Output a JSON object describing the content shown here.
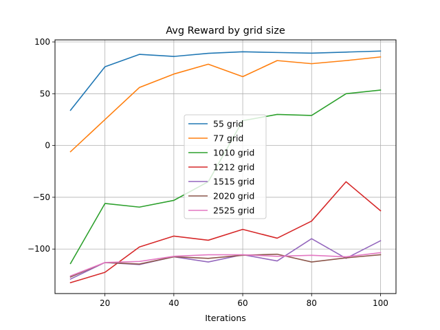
{
  "chart_data": {
    "type": "line",
    "title": "Avg Reward by grid size",
    "xlabel": "Iterations",
    "ylabel": "",
    "x": [
      10,
      20,
      30,
      40,
      50,
      60,
      70,
      80,
      90,
      100
    ],
    "xlim": [
      5.5,
      104.5
    ],
    "ylim": [
      -143,
      102
    ],
    "xticks": [
      20,
      40,
      60,
      80,
      100
    ],
    "yticks": [
      -100,
      -50,
      0,
      50,
      100
    ],
    "xtick_labels": [
      "20",
      "40",
      "60",
      "80",
      "100"
    ],
    "ytick_labels": [
      "−100",
      "−50",
      "0",
      "50",
      "100"
    ],
    "grid": true,
    "legend_position": "center",
    "series": [
      {
        "name": "55 grid",
        "color": "#1f77b4",
        "values": [
          34,
          76,
          88,
          86,
          89,
          90.5,
          89.8,
          89.2,
          90.2,
          91.2
        ]
      },
      {
        "name": "77 grid",
        "color": "#ff7f0e",
        "values": [
          -6,
          25,
          56,
          69,
          78.5,
          66.5,
          82,
          79,
          82,
          85.5
        ]
      },
      {
        "name": "1010 grid",
        "color": "#2ca02c",
        "values": [
          -114,
          -56,
          -59.5,
          -53,
          -35,
          24,
          30,
          29,
          50,
          53.5
        ]
      },
      {
        "name": "1212 grid",
        "color": "#d62728",
        "values": [
          -132.5,
          -122.5,
          -98,
          -87.5,
          -91.5,
          -81,
          -89.5,
          -73,
          -35,
          -63
        ]
      },
      {
        "name": "1515 grid",
        "color": "#9467bd",
        "values": [
          -129,
          -113,
          -115,
          -107.5,
          -112.5,
          -105.5,
          -111.5,
          -90,
          -109,
          -92
        ]
      },
      {
        "name": "2020 grid",
        "color": "#8c564b",
        "values": [
          -127,
          -113,
          -114.5,
          -107.5,
          -109,
          -106,
          -105,
          -112.5,
          -108.5,
          -105.5
        ]
      },
      {
        "name": "2525 grid",
        "color": "#e377c2",
        "values": [
          -126,
          -113,
          -112,
          -107,
          -105.5,
          -105.5,
          -107,
          -106,
          -107.5,
          -103.5
        ]
      }
    ]
  }
}
